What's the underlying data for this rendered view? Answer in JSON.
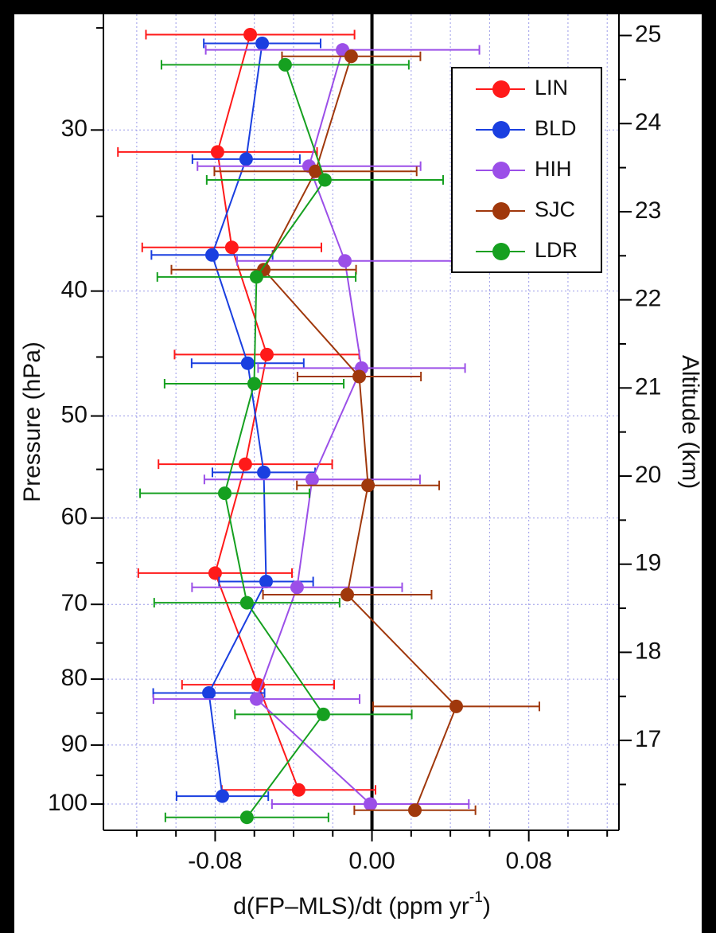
{
  "chart_data": {
    "type": "profile",
    "xlabel": "d(FP–MLS)/dt (ppm yr",
    "xlabel_sup": "-1",
    "xlabel_end": ")",
    "ylabel": "Pressure (hPa)",
    "y2label": "Altitude (km)",
    "xlim": [
      -0.137,
      0.126
    ],
    "xticks": [
      -0.08,
      {
        "value": 0,
        "label": "0.00"
      },
      0.08
    ],
    "xminorticks": [
      -0.12,
      -0.1,
      -0.06,
      -0.04,
      -0.02,
      0.02,
      0.04,
      0.06,
      0.1,
      0.12
    ],
    "ylim": [
      104.8,
      24.4
    ],
    "yscale": "log",
    "yticks": [
      30,
      40,
      50,
      60,
      70,
      80,
      90,
      100
    ],
    "yminorticks": [
      25,
      35,
      45,
      55,
      65,
      75,
      85,
      95
    ],
    "y2lim": [
      15.98,
      25.24
    ],
    "y2ticks": [
      17,
      18,
      19,
      20,
      21,
      22,
      23,
      24,
      25
    ],
    "y2minorticks": [
      16.5,
      17.5,
      18.5,
      19.5,
      20.5,
      21.5,
      22.5,
      23.5,
      24.5
    ],
    "grid": true,
    "zero_line": true,
    "legend": "upper right",
    "series": [
      {
        "name": "LIN",
        "color": "#ff1a1a",
        "x": [
          -0.0621,
          -0.0788,
          -0.0715,
          -0.0536,
          -0.0646,
          -0.08,
          -0.0581,
          -0.0374
        ],
        "xerr": [
          0.0532,
          0.0508,
          0.0457,
          0.0471,
          0.0443,
          0.0392,
          0.0388,
          0.0392
        ],
        "y": [
          25.3,
          31.2,
          37.0,
          44.8,
          54.5,
          66.2,
          80.8,
          97.5
        ]
      },
      {
        "name": "BLD",
        "color": "#1a3fe0",
        "x": [
          -0.056,
          -0.0642,
          -0.0816,
          -0.0634,
          -0.0552,
          -0.054,
          -0.0832,
          -0.0763
        ],
        "xerr": [
          0.0298,
          0.0274,
          0.0309,
          0.0286,
          0.0262,
          0.024,
          0.0284,
          0.0234
        ],
        "y": [
          25.7,
          31.6,
          37.5,
          45.5,
          55.3,
          67.2,
          82.0,
          98.6
        ]
      },
      {
        "name": "HIH",
        "color": "#9b4fe8",
        "x": [
          -0.015,
          -0.0321,
          -0.0138,
          -0.0053,
          -0.0305,
          -0.0382,
          -0.0589,
          -0.0008
        ],
        "xerr": [
          0.0698,
          0.0569,
          0.055,
          0.0528,
          0.055,
          0.0536,
          0.0526,
          0.0502
        ],
        "y": [
          26.0,
          32.0,
          37.9,
          45.9,
          56.0,
          67.9,
          82.9,
          100.0
        ]
      },
      {
        "name": "SJC",
        "color": "#a0380c",
        "x": [
          -0.0106,
          -0.0288,
          -0.0552,
          -0.0065,
          -0.002,
          -0.0126,
          0.043,
          0.0219
        ],
        "xerr": [
          0.0353,
          0.0516,
          0.0471,
          0.0315,
          0.0363,
          0.043,
          0.0424,
          0.0309
        ],
        "y": [
          26.3,
          32.3,
          38.5,
          46.6,
          56.6,
          68.8,
          84.0,
          101.1
        ]
      },
      {
        "name": "LDR",
        "color": "#16a020",
        "x": [
          -0.0443,
          -0.024,
          -0.0589,
          -0.0601,
          -0.0751,
          -0.0638,
          -0.0248,
          -0.0638
        ],
        "xerr": [
          0.0631,
          0.0603,
          0.0506,
          0.0457,
          0.0432,
          0.0473,
          0.0451,
          0.0416
        ],
        "y": [
          26.7,
          32.8,
          39.0,
          47.2,
          57.4,
          69.8,
          85.2,
          102.4
        ]
      }
    ]
  }
}
